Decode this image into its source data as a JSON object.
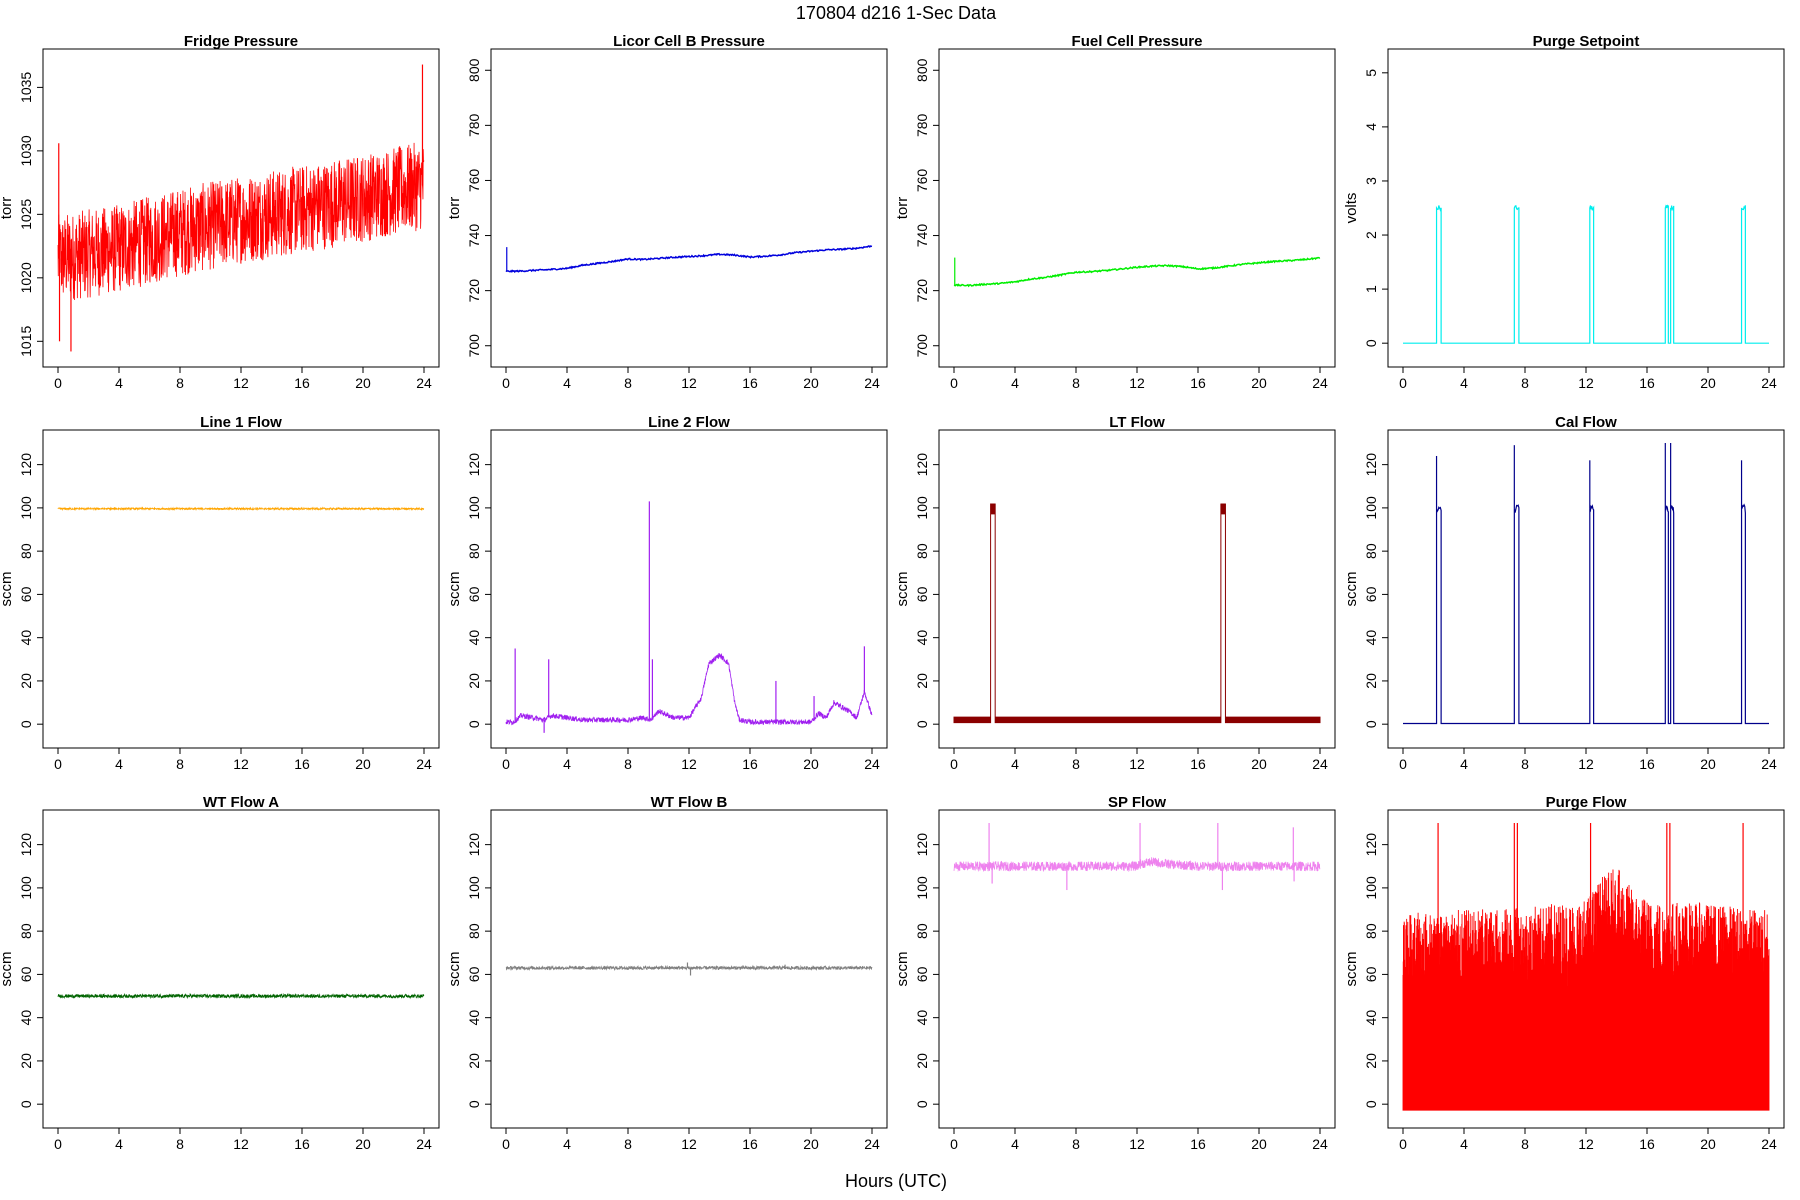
{
  "figure": {
    "title": "170804   d216   1-Sec Data",
    "xlabel": "Hours (UTC)"
  },
  "chart_data": [
    {
      "type": "line",
      "title": "Fridge Pressure",
      "ylabel": "torr",
      "color": "#ff0000",
      "xlim": [
        0,
        24
      ],
      "ylim": [
        1014,
        1037
      ],
      "xticks": [
        0,
        4,
        8,
        12,
        16,
        20,
        24
      ],
      "yticks": [
        1015,
        1020,
        1025,
        1030,
        1035
      ],
      "series": [
        {
          "style": "noisy",
          "x": [
            0,
            4,
            8,
            12,
            16,
            20,
            24
          ],
          "y": [
            1021.5,
            1022.3,
            1023.6,
            1024.6,
            1025.4,
            1026.3,
            1027.3
          ],
          "noise": 3.5
        }
      ],
      "spikes": [
        {
          "x": 0.05,
          "y": 1030.6
        },
        {
          "x": 0.1,
          "y": 1015.0
        },
        {
          "x": 0.85,
          "y": 1014.2
        },
        {
          "x": 23.9,
          "y": 1036.8
        }
      ]
    },
    {
      "type": "line",
      "title": "Licor Cell B Pressure",
      "ylabel": "torr",
      "color": "#0000dd",
      "xlim": [
        0,
        24
      ],
      "ylim": [
        697,
        803
      ],
      "xticks": [
        0,
        4,
        8,
        12,
        16,
        20,
        24
      ],
      "yticks": [
        700,
        720,
        740,
        760,
        780,
        800
      ],
      "series": [
        {
          "style": "line",
          "x": [
            0,
            1,
            2,
            3,
            4,
            5,
            6,
            7,
            8,
            9,
            10,
            11,
            12,
            13,
            14,
            15,
            16,
            17,
            18,
            19,
            20,
            21,
            22,
            23,
            24
          ],
          "y": [
            727.0,
            727.1,
            727.4,
            727.7,
            728.1,
            729.2,
            729.9,
            730.6,
            731.5,
            731.3,
            731.7,
            732.1,
            732.4,
            732.7,
            733.2,
            732.9,
            732.2,
            732.5,
            733.0,
            733.8,
            734.3,
            734.8,
            735.0,
            735.4,
            736.2
          ]
        }
      ],
      "spikes": [
        {
          "x": 0.05,
          "y": 735.8
        }
      ]
    },
    {
      "type": "line",
      "title": "Fuel Cell Pressure",
      "ylabel": "torr",
      "color": "#00ee00",
      "xlim": [
        0,
        24
      ],
      "ylim": [
        697,
        803
      ],
      "xticks": [
        0,
        4,
        8,
        12,
        16,
        20,
        24
      ],
      "yticks": [
        700,
        720,
        740,
        760,
        780,
        800
      ],
      "series": [
        {
          "style": "line",
          "x": [
            0,
            1,
            2,
            3,
            4,
            5,
            6,
            7,
            8,
            9,
            10,
            11,
            12,
            13,
            14,
            15,
            16,
            17,
            18,
            19,
            20,
            21,
            22,
            23,
            24
          ],
          "y": [
            722.0,
            721.9,
            722.3,
            722.6,
            723.2,
            724.2,
            724.8,
            725.7,
            726.7,
            726.9,
            727.3,
            727.9,
            728.5,
            728.9,
            729.1,
            728.7,
            727.9,
            728.2,
            728.9,
            729.6,
            730.1,
            730.6,
            730.9,
            731.3,
            731.9
          ]
        }
      ],
      "spikes": [
        {
          "x": 0.05,
          "y": 732.0
        }
      ]
    },
    {
      "type": "line",
      "title": "Purge Setpoint",
      "ylabel": "volts",
      "color": "#00eeee",
      "xlim": [
        0,
        24
      ],
      "ylim": [
        -0.2,
        5.2
      ],
      "xticks": [
        0,
        4,
        8,
        12,
        16,
        20,
        24
      ],
      "yticks": [
        0,
        1,
        2,
        3,
        4,
        5
      ],
      "series": [
        {
          "style": "pulses",
          "base": 0,
          "level": 2.5,
          "pulses": [
            [
              2.2,
              2.5
            ],
            [
              7.3,
              7.6
            ],
            [
              12.25,
              12.5
            ],
            [
              17.2,
              17.4
            ],
            [
              17.55,
              17.75
            ],
            [
              22.2,
              22.45
            ]
          ]
        }
      ],
      "spikes": []
    },
    {
      "type": "line",
      "title": "Line 1 Flow",
      "ylabel": "sccm",
      "color": "#ffa500",
      "xlim": [
        0,
        24
      ],
      "ylim": [
        -5,
        130
      ],
      "xticks": [
        0,
        4,
        8,
        12,
        16,
        20,
        24
      ],
      "yticks": [
        0,
        20,
        40,
        60,
        80,
        100,
        120
      ],
      "series": [
        {
          "style": "noisy",
          "x": [
            0,
            24
          ],
          "y": [
            99.6,
            99.6
          ],
          "noise": 0.4
        }
      ],
      "spikes": []
    },
    {
      "type": "line",
      "title": "Line 2 Flow",
      "ylabel": "sccm",
      "color": "#a020f0",
      "xlim": [
        0,
        24
      ],
      "ylim": [
        -5,
        130
      ],
      "xticks": [
        0,
        4,
        8,
        12,
        16,
        20,
        24
      ],
      "yticks": [
        0,
        20,
        40,
        60,
        80,
        100,
        120
      ],
      "series": [
        {
          "style": "noisy",
          "x": [
            0,
            0.5,
            1.0,
            2.5,
            3.0,
            5.0,
            8.0,
            9.0,
            9.5,
            10.0,
            11.0,
            12.0,
            12.8,
            13.3,
            14.0,
            14.6,
            15.0,
            15.3,
            16.0,
            18.0,
            20.0,
            20.5,
            21.0,
            21.5,
            22.0,
            22.5,
            23.0,
            23.5,
            24.0
          ],
          "y": [
            1,
            1,
            4,
            2,
            4,
            2,
            2,
            3,
            2,
            6,
            3,
            3,
            12,
            28,
            32,
            28,
            10,
            2,
            1,
            1,
            1,
            5,
            3,
            10,
            8,
            6,
            3,
            15,
            4
          ],
          "noise": 1.2
        }
      ],
      "spikes": [
        {
          "x": 0.6,
          "y": 35
        },
        {
          "x": 2.8,
          "y": 30
        },
        {
          "x": 9.4,
          "y": 103
        },
        {
          "x": 9.6,
          "y": 30
        },
        {
          "x": 17.7,
          "y": 20
        },
        {
          "x": 20.2,
          "y": 13
        },
        {
          "x": 23.5,
          "y": 36
        },
        {
          "x": 2.5,
          "y": -4
        }
      ]
    },
    {
      "type": "line",
      "title": "LT Flow",
      "ylabel": "sccm",
      "color": "#8b0000",
      "xlim": [
        0,
        24
      ],
      "ylim": [
        -5,
        130
      ],
      "xticks": [
        0,
        4,
        8,
        12,
        16,
        20,
        24
      ],
      "yticks": [
        0,
        20,
        40,
        60,
        80,
        100,
        120
      ],
      "series": [
        {
          "style": "band",
          "base_lo": 0.5,
          "base_hi": 3.5,
          "pulses": [
            [
              2.4,
              2.7
            ],
            [
              17.5,
              17.8
            ]
          ],
          "level_lo": 97,
          "level_hi": 102
        }
      ],
      "spikes": []
    },
    {
      "type": "line",
      "title": "Cal Flow",
      "ylabel": "sccm",
      "color": "#00008b",
      "xlim": [
        0,
        24
      ],
      "ylim": [
        -5,
        130
      ],
      "xticks": [
        0,
        4,
        8,
        12,
        16,
        20,
        24
      ],
      "yticks": [
        0,
        20,
        40,
        60,
        80,
        100,
        120
      ],
      "series": [
        {
          "style": "pulses",
          "base": 0.3,
          "level": 99.5,
          "pulses": [
            [
              2.2,
              2.5
            ],
            [
              7.3,
              7.6
            ],
            [
              12.25,
              12.5
            ],
            [
              17.2,
              17.4
            ],
            [
              17.55,
              17.75
            ],
            [
              22.2,
              22.45
            ]
          ]
        }
      ],
      "spikes": [
        {
          "x": 2.2,
          "y": 124
        },
        {
          "x": 7.3,
          "y": 129
        },
        {
          "x": 12.25,
          "y": 122
        },
        {
          "x": 17.2,
          "y": 130
        },
        {
          "x": 17.55,
          "y": 130
        },
        {
          "x": 22.2,
          "y": 122
        }
      ]
    },
    {
      "type": "line",
      "title": "WT Flow A",
      "ylabel": "sccm",
      "color": "#006400",
      "xlim": [
        0,
        24
      ],
      "ylim": [
        -5,
        130
      ],
      "xticks": [
        0,
        4,
        8,
        12,
        16,
        20,
        24
      ],
      "yticks": [
        0,
        20,
        40,
        60,
        80,
        100,
        120
      ],
      "series": [
        {
          "style": "noisy",
          "x": [
            0,
            24
          ],
          "y": [
            50,
            50
          ],
          "noise": 0.8
        }
      ],
      "spikes": []
    },
    {
      "type": "line",
      "title": "WT Flow B",
      "ylabel": "sccm",
      "color": "#808080",
      "xlim": [
        0,
        24
      ],
      "ylim": [
        -5,
        130
      ],
      "xticks": [
        0,
        4,
        8,
        12,
        16,
        20,
        24
      ],
      "yticks": [
        0,
        20,
        40,
        60,
        80,
        100,
        120
      ],
      "series": [
        {
          "style": "noisy",
          "x": [
            0,
            11,
            12,
            14,
            15,
            24
          ],
          "y": [
            63,
            63,
            63,
            63,
            63,
            63
          ],
          "noise": 0.8
        }
      ],
      "spikes": [
        {
          "x": 11.9,
          "y": 65.5
        },
        {
          "x": 12.1,
          "y": 59.5
        },
        {
          "x": 18.3,
          "y": 64.5
        }
      ]
    },
    {
      "type": "line",
      "title": "SP Flow",
      "ylabel": "sccm",
      "color": "#ee82ee",
      "xlim": [
        0,
        24
      ],
      "ylim": [
        -5,
        130
      ],
      "xticks": [
        0,
        4,
        8,
        12,
        16,
        20,
        24
      ],
      "yticks": [
        0,
        20,
        40,
        60,
        80,
        100,
        120
      ],
      "series": [
        {
          "style": "noisy",
          "x": [
            0,
            12,
            12.2,
            13,
            14,
            16,
            17,
            24
          ],
          "y": [
            110,
            110,
            111,
            112,
            111,
            110,
            110,
            110
          ],
          "noise": 2.2
        }
      ],
      "spikes": [
        {
          "x": 2.3,
          "y": 130
        },
        {
          "x": 2.5,
          "y": 102
        },
        {
          "x": 7.4,
          "y": 99
        },
        {
          "x": 12.2,
          "y": 130
        },
        {
          "x": 17.3,
          "y": 130
        },
        {
          "x": 17.6,
          "y": 99
        },
        {
          "x": 22.3,
          "y": 103
        },
        {
          "x": 22.25,
          "y": 128
        }
      ]
    },
    {
      "type": "line",
      "title": "Purge Flow",
      "ylabel": "sccm",
      "color": "#ff0000",
      "xlim": [
        0,
        24
      ],
      "ylim": [
        -5,
        130
      ],
      "xticks": [
        0,
        4,
        8,
        12,
        16,
        20,
        24
      ],
      "yticks": [
        0,
        20,
        40,
        60,
        80,
        100,
        120
      ],
      "series": [
        {
          "style": "dense",
          "x": [
            0,
            4,
            8,
            12,
            13,
            14,
            15,
            16,
            20,
            24
          ],
          "y_top": [
            88,
            90,
            91,
            95,
            105,
            110,
            100,
            95,
            93,
            90
          ],
          "y_bottom": -3
        }
      ],
      "spikes": [
        {
          "x": 2.3,
          "y": 130
        },
        {
          "x": 7.3,
          "y": 130
        },
        {
          "x": 7.5,
          "y": 130
        },
        {
          "x": 12.3,
          "y": 130
        },
        {
          "x": 17.3,
          "y": 130
        },
        {
          "x": 17.5,
          "y": 130
        },
        {
          "x": 22.3,
          "y": 130
        }
      ]
    }
  ]
}
